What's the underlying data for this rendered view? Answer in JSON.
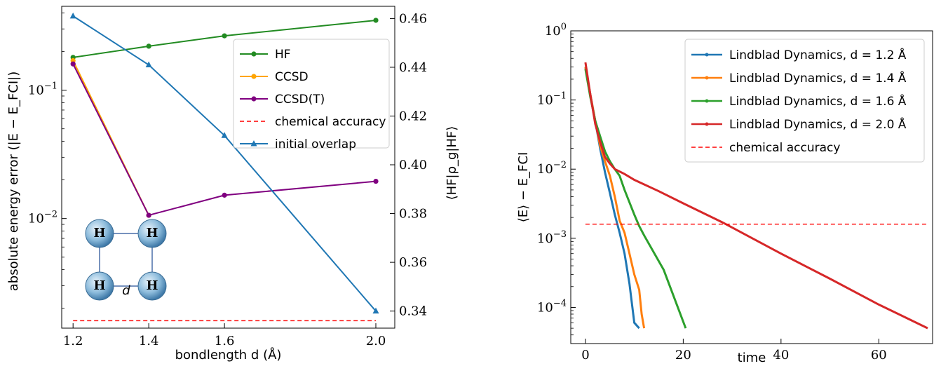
{
  "chart_data": [
    {
      "type": "line",
      "title": "",
      "xlabel": "bondlength d (Å)",
      "ylabel": "absolute energy error (|E − E_FCI|)",
      "ylabel_right": "⟨HF|ρ_g|HF⟩",
      "yscale": "log",
      "x_ticks": [
        "1.2",
        "1.4",
        "1.6",
        "2.0"
      ],
      "y_ticks": [
        "10^-2",
        "10^-1"
      ],
      "y_right_ticks": [
        "0.34",
        "0.36",
        "0.38",
        "0.40",
        "0.42",
        "0.44",
        "0.46"
      ],
      "xlim": [
        1.17,
        2.05
      ],
      "ylim": [
        0.0014,
        0.45
      ],
      "y2lim": [
        0.333,
        0.465
      ],
      "legend_position": "upper right",
      "series": [
        {
          "name": "HF",
          "color": "#228B22",
          "marker": "circle",
          "axis": "left",
          "x": [
            1.2,
            1.4,
            1.6,
            2.0
          ],
          "y": [
            0.18,
            0.22,
            0.265,
            0.35
          ]
        },
        {
          "name": "CCSD",
          "color": "#FFA500",
          "marker": "circle",
          "axis": "left",
          "x": [
            1.2,
            1.4
          ],
          "y": [
            0.17,
            0.0106
          ]
        },
        {
          "name": "CCSD(T)",
          "color": "#800080",
          "marker": "circle",
          "axis": "left",
          "x": [
            1.2,
            1.4,
            1.6,
            2.0
          ],
          "y": [
            0.16,
            0.0106,
            0.0152,
            0.0195
          ]
        },
        {
          "name": "chemical accuracy",
          "color": "#FF0000",
          "style": "dashed",
          "axis": "left",
          "x": [
            1.2,
            2.0
          ],
          "y": [
            0.0016,
            0.0016
          ]
        },
        {
          "name": "initial overlap",
          "color": "#1F77B4",
          "marker": "triangle",
          "axis": "right",
          "x": [
            1.2,
            1.4,
            1.6,
            2.0
          ],
          "y": [
            0.461,
            0.441,
            0.412,
            0.34
          ]
        }
      ],
      "molecule": {
        "atoms": [
          "H",
          "H",
          "H",
          "H"
        ],
        "side_label": "d"
      }
    },
    {
      "type": "line",
      "title": "",
      "xlabel": "time",
      "ylabel": "⟨E⟩ − E_FCI",
      "yscale": "log",
      "x_ticks": [
        "0",
        "20",
        "40",
        "60"
      ],
      "y_ticks": [
        "10^-4",
        "10^-3",
        "10^-2",
        "10^-1",
        "10^0"
      ],
      "xlim": [
        -3,
        71
      ],
      "ylim": [
        3e-05,
        1
      ],
      "legend_position": "upper right",
      "series": [
        {
          "name": "Lindblad Dynamics, d = 1.2 Å",
          "color": "#1F77B4",
          "x": [
            0,
            1,
            2,
            3,
            4,
            5,
            6,
            7,
            8,
            9,
            10,
            11
          ],
          "y": [
            0.3,
            0.12,
            0.05,
            0.02,
            0.009,
            0.0045,
            0.0022,
            0.0012,
            0.0006,
            0.00022,
            6e-05,
            5e-05
          ]
        },
        {
          "name": "Lindblad Dynamics, d = 1.4 Å",
          "color": "#FF7F0E",
          "x": [
            0,
            1,
            2,
            3,
            4,
            5,
            6,
            7,
            8,
            9,
            10,
            11,
            11.5,
            12
          ],
          "y": [
            0.3,
            0.12,
            0.05,
            0.022,
            0.013,
            0.008,
            0.004,
            0.0018,
            0.0012,
            0.0006,
            0.0003,
            0.00018,
            8e-05,
            5e-05
          ]
        },
        {
          "name": "Lindblad Dynamics, d = 1.6 Å",
          "color": "#2CA02C",
          "x": [
            0,
            1,
            2,
            3,
            4,
            5,
            6,
            7,
            8,
            10,
            11,
            12,
            16,
            20.5
          ],
          "y": [
            0.28,
            0.11,
            0.05,
            0.03,
            0.018,
            0.013,
            0.01,
            0.008,
            0.005,
            0.0022,
            0.0015,
            0.0011,
            0.00035,
            5e-05
          ]
        },
        {
          "name": "Lindblad Dynamics, d = 2.0 Å",
          "color": "#D62728",
          "x": [
            0,
            1,
            2,
            3,
            4,
            5,
            6,
            8,
            10,
            15,
            20,
            28,
            40,
            50,
            60,
            70
          ],
          "y": [
            0.35,
            0.12,
            0.045,
            0.025,
            0.015,
            0.012,
            0.01,
            0.0085,
            0.007,
            0.0048,
            0.0032,
            0.0017,
            0.0006,
            0.00026,
            0.00011,
            5e-05
          ]
        },
        {
          "name": "chemical accuracy",
          "color": "#FF0000",
          "style": "dashed",
          "x": [
            0,
            70
          ],
          "y": [
            0.0016,
            0.0016
          ]
        }
      ]
    }
  ]
}
